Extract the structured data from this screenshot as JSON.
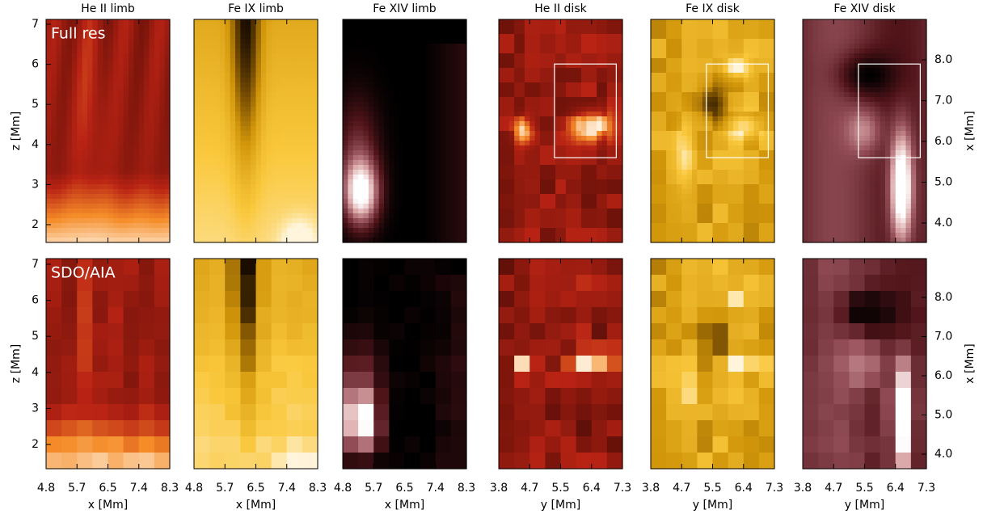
{
  "figure": {
    "columns": [
      "He II limb",
      "Fe IX limb",
      "Fe XIV limb",
      "He II disk",
      "Fe IX disk",
      "Fe XIV disk"
    ],
    "rows": [
      "Full res",
      "SDO/AIA"
    ],
    "x_axis": {
      "limb": {
        "label": "x [Mm]",
        "ticks": [
          "4.8",
          "5.7",
          "6.5",
          "7.4",
          "8.3"
        ]
      },
      "disk": {
        "label": "y [Mm]",
        "ticks": [
          "3.8",
          "4.7",
          "5.5",
          "6.4",
          "7.3"
        ]
      }
    },
    "left_axis": {
      "label": "z [Mm]",
      "ticks": [
        "7",
        "6",
        "5",
        "4",
        "3",
        "2"
      ]
    },
    "right_axis": {
      "label": "x [Mm]",
      "ticks": [
        "8.0",
        "7.0",
        "6.0",
        "5.0",
        "4.0"
      ]
    }
  }
}
